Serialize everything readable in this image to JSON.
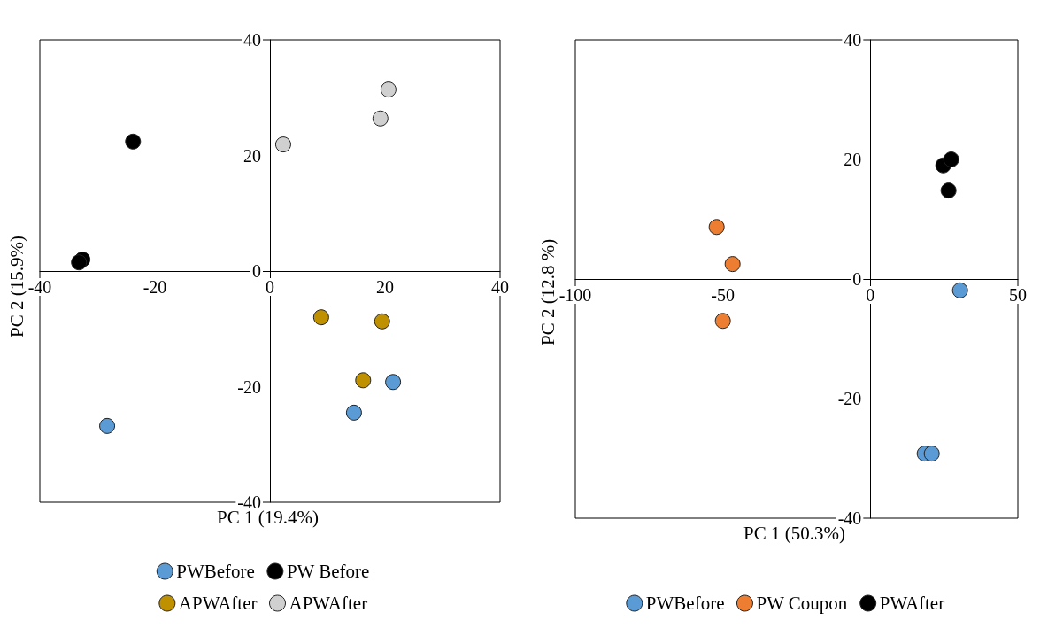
{
  "chart_data": [
    {
      "type": "scatter",
      "xlabel": "PC 1 (19.4%)",
      "ylabel": "PC 2 (15.9%)",
      "xlim": [
        -40,
        40
      ],
      "ylim": [
        -40,
        40
      ],
      "xticks": [
        -40,
        -20,
        0,
        20,
        40
      ],
      "yticks": [
        -40,
        -20,
        0,
        20,
        40
      ],
      "grid": false,
      "legend": "bottom",
      "marker": "circle",
      "series": [
        {
          "name": "PWBefore",
          "color": "#5b9bd5",
          "x": [
            -28.3,
            14.6,
            21.4
          ],
          "values": [
            -26.8,
            -24.5,
            -19.2
          ]
        },
        {
          "name": "PW Before",
          "color": "#000000",
          "x": [
            -23.8,
            -32.6,
            -33.2
          ],
          "values": [
            22.4,
            2.0,
            1.5
          ]
        },
        {
          "name": "APWAfter",
          "color": "#bf9000",
          "x": [
            8.9,
            19.5,
            16.2
          ],
          "values": [
            -8.0,
            -8.7,
            -18.9
          ]
        },
        {
          "name": "APWAfter",
          "color": "#d0d0d0",
          "x": [
            2.3,
            19.2,
            20.6
          ],
          "values": [
            21.9,
            26.4,
            31.4
          ]
        }
      ]
    },
    {
      "type": "scatter",
      "xlabel": "PC 1 (50.3%)",
      "ylabel": "PC 2 (12.8 %)",
      "xlim": [
        -100,
        50
      ],
      "ylim": [
        -40,
        40
      ],
      "xticks": [
        -100,
        -50,
        0,
        50
      ],
      "yticks": [
        -40,
        -20,
        0,
        20,
        40
      ],
      "grid": false,
      "legend": "bottom",
      "marker": "circle",
      "series": [
        {
          "name": "PWBefore",
          "color": "#5b9bd5",
          "x": [
            30.4,
            18.4,
            20.8
          ],
          "values": [
            -1.9,
            -29.2,
            -29.2
          ]
        },
        {
          "name": "PW Coupon",
          "color": "#ed7d31",
          "x": [
            -52.1,
            -46.7,
            -50.0
          ],
          "values": [
            8.7,
            2.5,
            -7.0
          ]
        },
        {
          "name": "PWAfter",
          "color": "#000000",
          "x": [
            24.7,
            27.4,
            26.5
          ],
          "values": [
            19.0,
            20.0,
            14.8
          ]
        }
      ]
    }
  ]
}
